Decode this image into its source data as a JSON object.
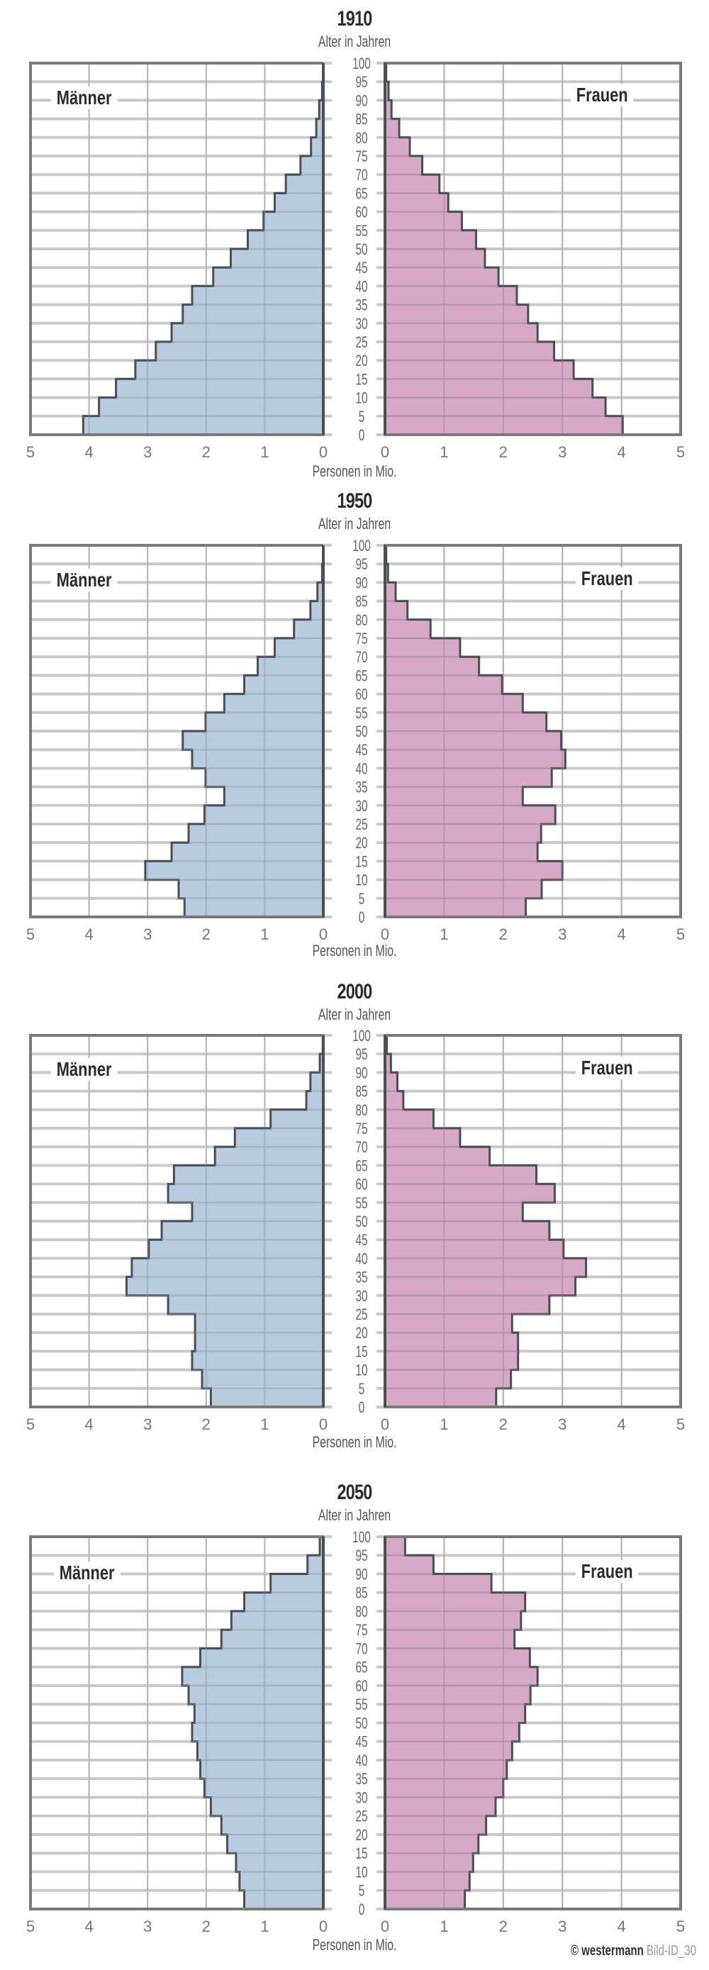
{
  "common": {
    "age_axis_label": "Alter in Jahren",
    "x_axis_label": "Personen in Mio.",
    "men_label": "Männer",
    "women_label": "Frauen",
    "age_ticks": [
      0,
      5,
      10,
      15,
      20,
      25,
      30,
      35,
      40,
      45,
      50,
      55,
      60,
      65,
      70,
      75,
      80,
      85,
      90,
      95,
      100
    ],
    "x_ticks": [
      0,
      1,
      2,
      3,
      4,
      5
    ],
    "colors": {
      "men": "#b3c8dc",
      "women": "#d3a3c2",
      "outline": "#4a4f55",
      "grid": "#c9c9c9",
      "frame": "#7a7a7a"
    }
  },
  "credit": {
    "publisher": "© westermann",
    "code": "Bild-ID_30"
  },
  "chart_data": [
    {
      "type": "bar",
      "subtype": "population-pyramid",
      "title": "1910",
      "ylabel": "Alter in Jahren",
      "xlabel": "Personen in Mio.",
      "xlim": [
        0,
        5
      ],
      "ylim": [
        0,
        100
      ],
      "grid": true,
      "categories": [
        "0-4",
        "5-9",
        "10-14",
        "15-19",
        "20-24",
        "25-29",
        "30-34",
        "35-39",
        "40-44",
        "45-49",
        "50-54",
        "55-59",
        "60-64",
        "65-69",
        "70-74",
        "75-79",
        "80-84",
        "85-89",
        "90-94",
        "95-99"
      ],
      "series": [
        {
          "name": "Männer",
          "values": [
            4.1,
            3.83,
            3.54,
            3.21,
            2.86,
            2.59,
            2.4,
            2.24,
            1.88,
            1.58,
            1.29,
            1.02,
            0.83,
            0.64,
            0.39,
            0.21,
            0.12,
            0.07,
            0.02,
            0.0
          ]
        },
        {
          "name": "Frauen",
          "values": [
            4.02,
            3.73,
            3.51,
            3.19,
            2.86,
            2.58,
            2.42,
            2.23,
            1.92,
            1.69,
            1.54,
            1.3,
            1.07,
            0.92,
            0.63,
            0.42,
            0.24,
            0.11,
            0.06,
            0.02
          ]
        }
      ]
    },
    {
      "type": "bar",
      "subtype": "population-pyramid",
      "title": "1950",
      "ylabel": "Alter in Jahren",
      "xlabel": "Personen in Mio.",
      "xlim": [
        0,
        5
      ],
      "ylim": [
        0,
        100
      ],
      "grid": true,
      "categories": [
        "0-4",
        "5-9",
        "10-14",
        "15-19",
        "20-24",
        "25-29",
        "30-34",
        "35-39",
        "40-44",
        "45-49",
        "50-54",
        "55-59",
        "60-64",
        "65-69",
        "70-74",
        "75-79",
        "80-84",
        "85-89",
        "90-94",
        "95-99"
      ],
      "series": [
        {
          "name": "Männer",
          "values": [
            2.37,
            2.47,
            3.04,
            2.59,
            2.3,
            2.03,
            1.69,
            2.01,
            2.24,
            2.4,
            2.01,
            1.69,
            1.35,
            1.12,
            0.83,
            0.5,
            0.22,
            0.1,
            0.02,
            0.0
          ]
        },
        {
          "name": "Frauen",
          "values": [
            2.38,
            2.65,
            3.0,
            2.58,
            2.64,
            2.88,
            2.33,
            2.82,
            3.05,
            2.98,
            2.73,
            2.33,
            1.98,
            1.59,
            1.27,
            0.77,
            0.38,
            0.18,
            0.05,
            0.02
          ]
        }
      ]
    },
    {
      "type": "bar",
      "subtype": "population-pyramid",
      "title": "2000",
      "ylabel": "Alter in Jahren",
      "xlabel": "Personen in Mio.",
      "xlim": [
        0,
        5
      ],
      "ylim": [
        0,
        100
      ],
      "grid": true,
      "categories": [
        "0-4",
        "5-9",
        "10-14",
        "15-19",
        "20-24",
        "25-29",
        "30-34",
        "35-39",
        "40-44",
        "45-49",
        "50-54",
        "55-59",
        "60-64",
        "65-69",
        "70-74",
        "75-79",
        "80-84",
        "85-89",
        "90-94",
        "95-99"
      ],
      "series": [
        {
          "name": "Männer",
          "values": [
            1.92,
            2.07,
            2.24,
            2.19,
            2.19,
            2.65,
            3.36,
            3.27,
            2.98,
            2.76,
            2.24,
            2.65,
            2.55,
            1.85,
            1.51,
            0.9,
            0.29,
            0.22,
            0.06,
            0.01
          ]
        },
        {
          "name": "Frauen",
          "values": [
            1.88,
            2.13,
            2.25,
            2.25,
            2.15,
            2.78,
            3.22,
            3.4,
            3.02,
            2.78,
            2.33,
            2.87,
            2.56,
            1.77,
            1.27,
            0.82,
            0.31,
            0.21,
            0.1,
            0.03
          ]
        }
      ]
    },
    {
      "type": "bar",
      "subtype": "population-pyramid",
      "title": "2050",
      "ylabel": "Alter in Jahren",
      "xlabel": "Personen in Mio.",
      "xlim": [
        0,
        5
      ],
      "ylim": [
        0,
        100
      ],
      "grid": true,
      "categories": [
        "0-4",
        "5-9",
        "10-14",
        "15-19",
        "20-24",
        "25-29",
        "30-34",
        "35-39",
        "40-44",
        "45-49",
        "50-54",
        "55-59",
        "60-64",
        "65-69",
        "70-74",
        "75-79",
        "80-84",
        "85-89",
        "90-94",
        "95-99"
      ],
      "series": [
        {
          "name": "Männer",
          "values": [
            1.35,
            1.43,
            1.49,
            1.64,
            1.74,
            1.92,
            2.03,
            2.1,
            2.15,
            2.24,
            2.2,
            2.3,
            2.41,
            2.1,
            1.74,
            1.57,
            1.35,
            0.9,
            0.27,
            0.06
          ]
        },
        {
          "name": "Frauen",
          "values": [
            1.35,
            1.43,
            1.49,
            1.58,
            1.71,
            1.87,
            2.0,
            2.06,
            2.15,
            2.27,
            2.37,
            2.46,
            2.58,
            2.45,
            2.19,
            2.3,
            2.37,
            1.8,
            0.82,
            0.34
          ]
        }
      ]
    }
  ]
}
